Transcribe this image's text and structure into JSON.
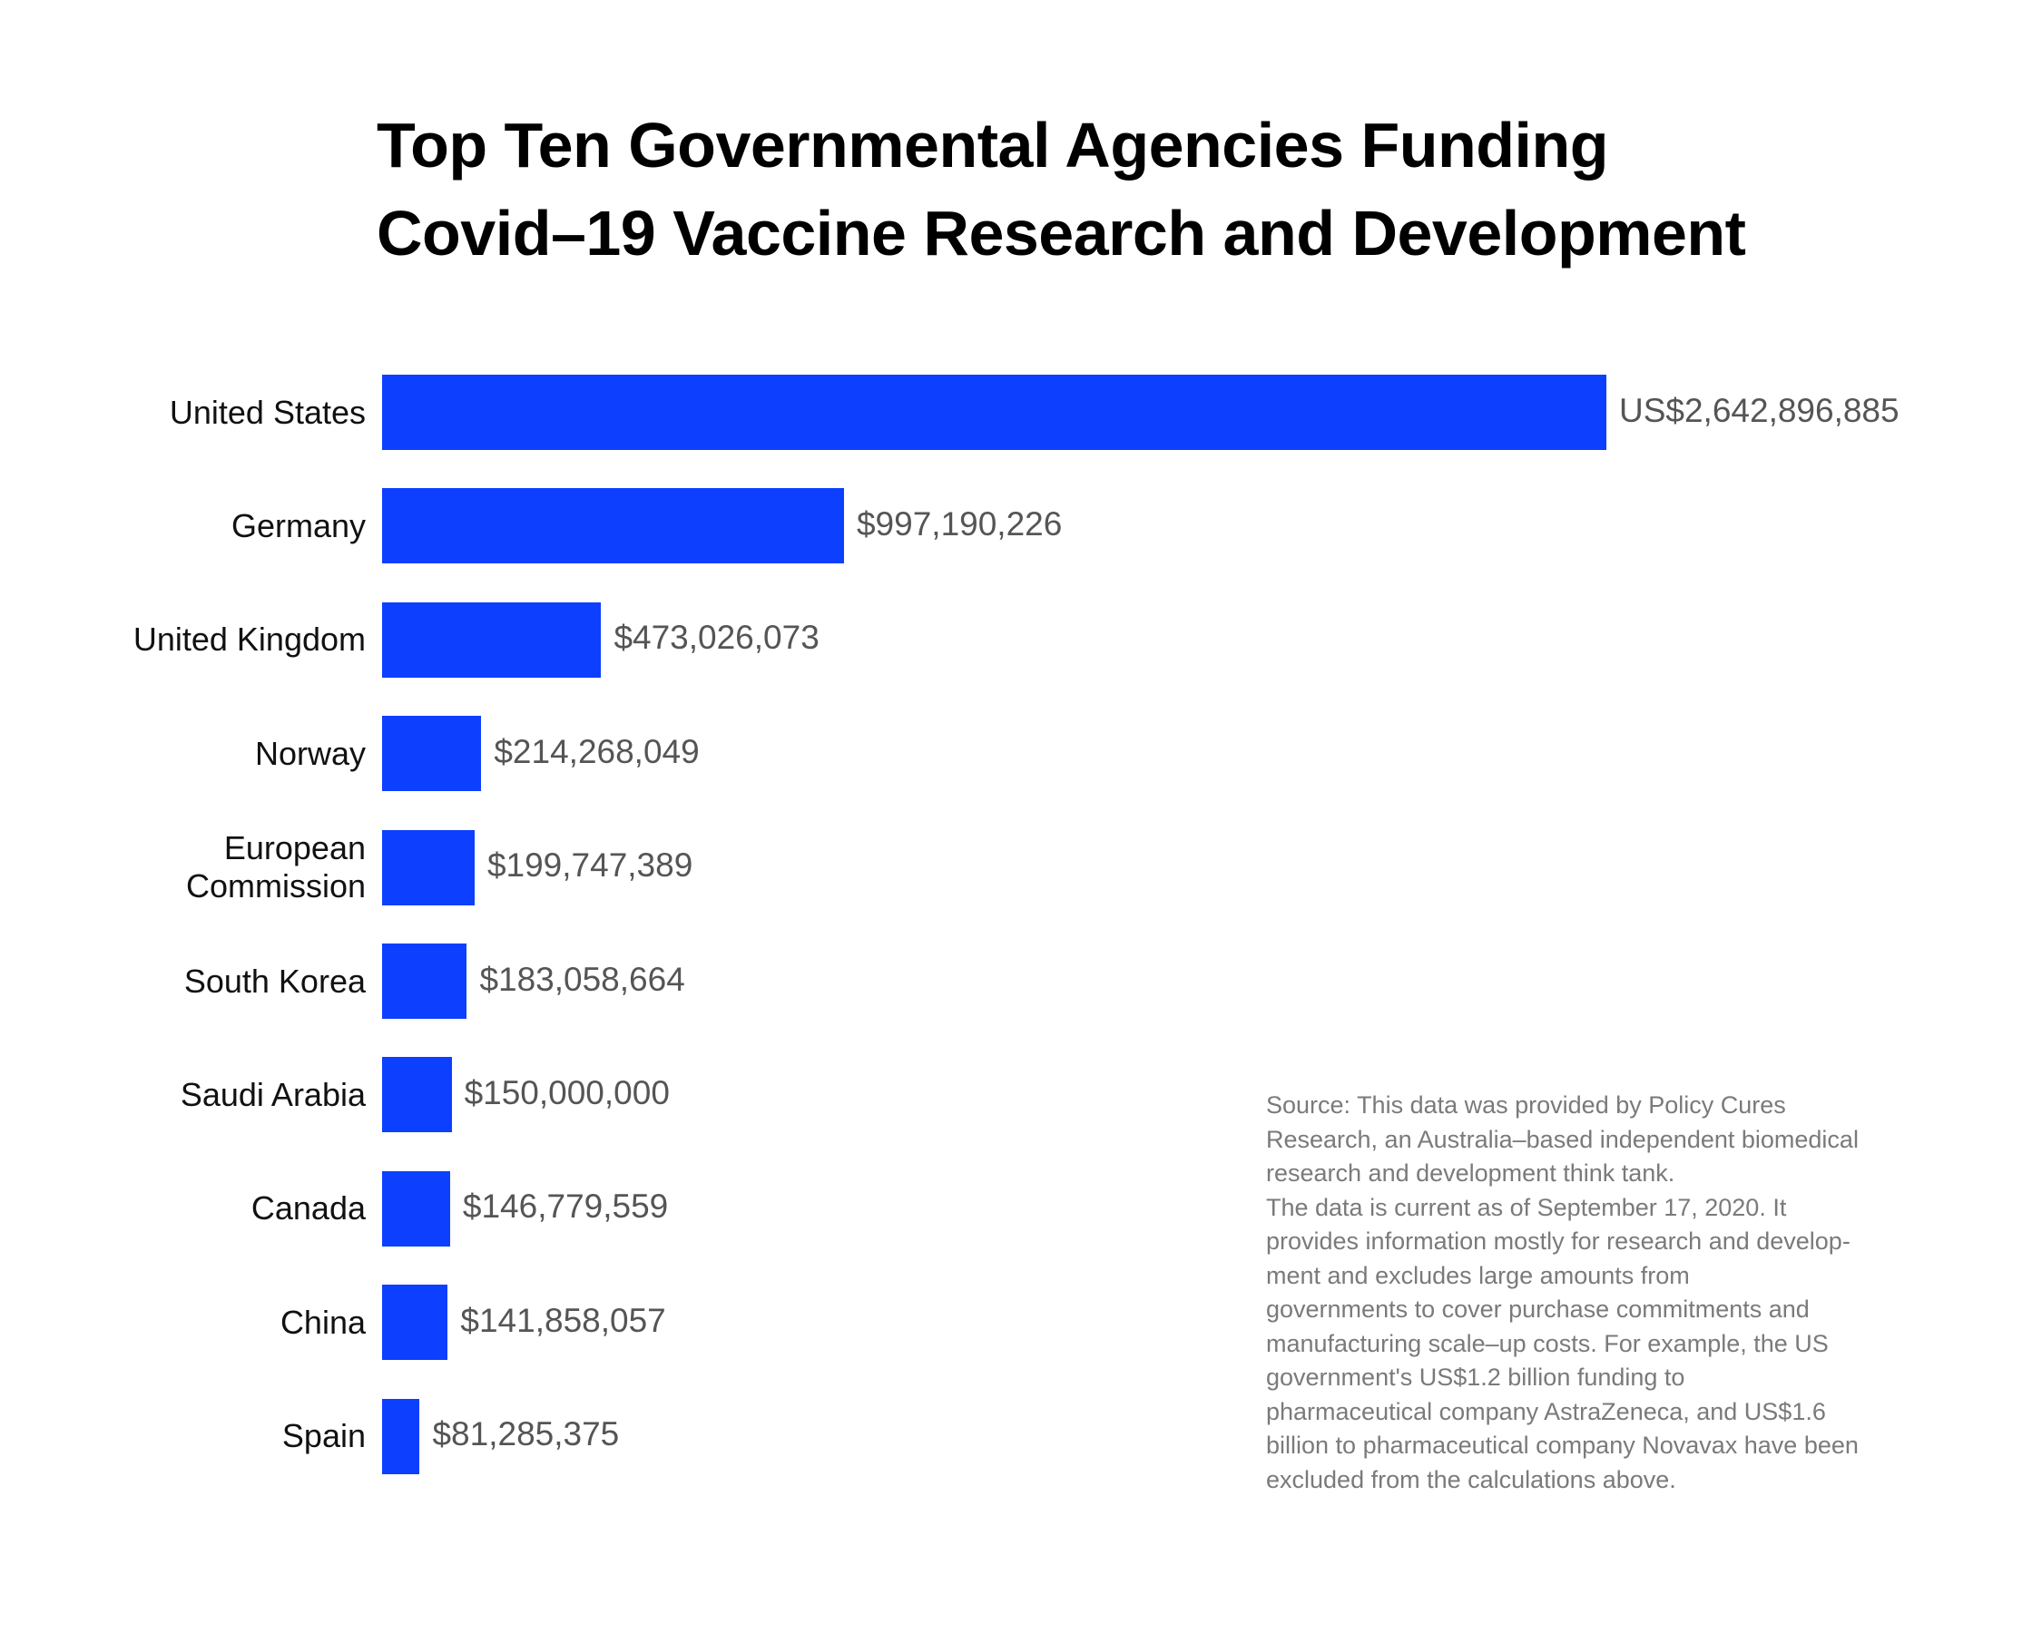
{
  "chart_data": {
    "type": "bar",
    "orientation": "horizontal",
    "title": "Top Ten Governmental Agencies Funding Covid–19 Vaccine Research and Development",
    "title_lines": [
      "Top Ten Governmental Agencies Funding",
      "Covid–19 Vaccine Research and Development"
    ],
    "categories": [
      "United States",
      "Germany",
      "United Kingdom",
      "Norway",
      "European Commission",
      "South Korea",
      "Saudi Arabia",
      "Canada",
      "China",
      "Spain"
    ],
    "category_lines": [
      [
        "United States"
      ],
      [
        "Germany"
      ],
      [
        "United Kingdom"
      ],
      [
        "Norway"
      ],
      [
        "European",
        "Commission"
      ],
      [
        "South Korea"
      ],
      [
        "Saudi Arabia"
      ],
      [
        "Canada"
      ],
      [
        "China"
      ],
      [
        "Spain"
      ]
    ],
    "values": [
      2642896885,
      997190226,
      473026073,
      214268049,
      199747389,
      183058664,
      150000000,
      146779559,
      141858057,
      81285375
    ],
    "data_labels": [
      "US$2,642,896,885",
      "$997,190,226",
      "$473,026,073",
      "$214,268,049",
      "$199,747,389",
      "$183,058,664",
      "$150,000,000",
      "$146,779,559",
      "$141,858,057",
      "$81,285,375"
    ],
    "xlabel": "",
    "ylabel": "",
    "grid": false,
    "bar_color": "#0d3fff"
  },
  "source_note": {
    "lines": [
      "Source: This data was provided by Policy Cures",
      "Research, an Australia–based independent biomedical",
      "research and development think tank.",
      "The data is current as of September 17, 2020. It",
      "provides information mostly for research and develop-",
      "ment and excludes large amounts from",
      "governments to cover purchase commitments and",
      "manufacturing scale–up costs. For example, the US",
      "government's US$1.2 billion funding to",
      "pharmaceutical company AstraZeneca, and US$1.6",
      "billion to pharmaceutical company Novavax have been",
      "excluded from the calculations above."
    ]
  }
}
